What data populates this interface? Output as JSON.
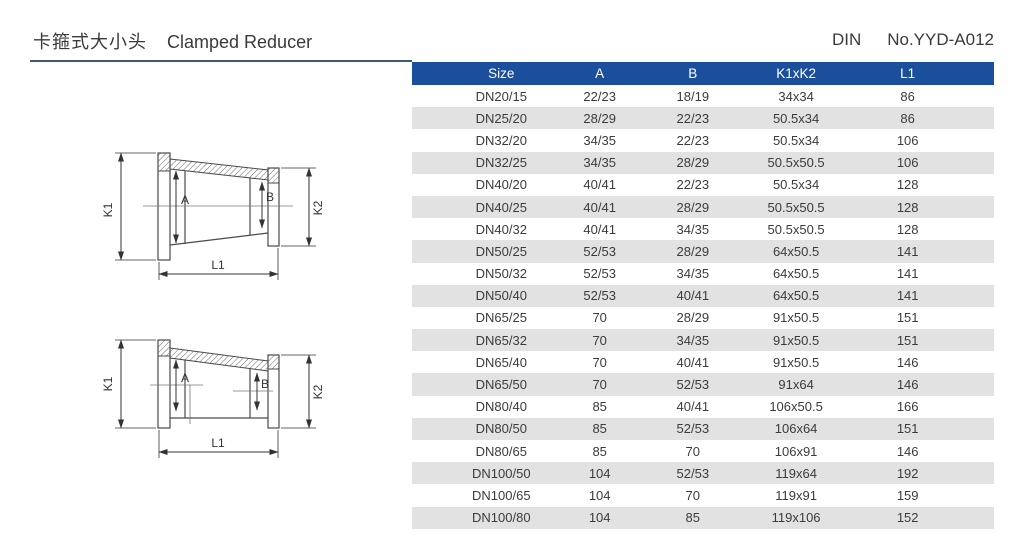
{
  "header": {
    "title_cn": "卡箍式大小头",
    "title_en": "Clamped Reducer",
    "standard": "DIN",
    "model_no": "No.YYD-A012"
  },
  "drawings": {
    "concentric": {
      "labels": {
        "k1": "K1",
        "a": "A",
        "b": "B",
        "k2": "K2",
        "l1": "L1"
      }
    },
    "eccentric": {
      "labels": {
        "k1": "K1",
        "a": "A",
        "b": "B",
        "k2": "K2",
        "l1": "L1"
      }
    }
  },
  "table": {
    "columns": [
      "Size",
      "A",
      "B",
      "K1xK2",
      "L1"
    ],
    "rows": [
      [
        "DN20/15",
        "22/23",
        "18/19",
        "34x34",
        "86"
      ],
      [
        "DN25/20",
        "28/29",
        "22/23",
        "50.5x34",
        "86"
      ],
      [
        "DN32/20",
        "34/35",
        "22/23",
        "50.5x34",
        "106"
      ],
      [
        "DN32/25",
        "34/35",
        "28/29",
        "50.5x50.5",
        "106"
      ],
      [
        "DN40/20",
        "40/41",
        "22/23",
        "50.5x34",
        "128"
      ],
      [
        "DN40/25",
        "40/41",
        "28/29",
        "50.5x50.5",
        "128"
      ],
      [
        "DN40/32",
        "40/41",
        "34/35",
        "50.5x50.5",
        "128"
      ],
      [
        "DN50/25",
        "52/53",
        "28/29",
        "64x50.5",
        "141"
      ],
      [
        "DN50/32",
        "52/53",
        "34/35",
        "64x50.5",
        "141"
      ],
      [
        "DN50/40",
        "52/53",
        "40/41",
        "64x50.5",
        "141"
      ],
      [
        "DN65/25",
        "70",
        "28/29",
        "91x50.5",
        "151"
      ],
      [
        "DN65/32",
        "70",
        "34/35",
        "91x50.5",
        "151"
      ],
      [
        "DN65/40",
        "70",
        "40/41",
        "91x50.5",
        "146"
      ],
      [
        "DN65/50",
        "70",
        "52/53",
        "91x64",
        "146"
      ],
      [
        "DN80/40",
        "85",
        "40/41",
        "106x50.5",
        "166"
      ],
      [
        "DN80/50",
        "85",
        "52/53",
        "106x64",
        "151"
      ],
      [
        "DN80/65",
        "85",
        "70",
        "106x91",
        "146"
      ],
      [
        "DN100/50",
        "104",
        "52/53",
        "119x64",
        "192"
      ],
      [
        "DN100/65",
        "104",
        "70",
        "119x91",
        "159"
      ],
      [
        "DN100/80",
        "104",
        "85",
        "119x106",
        "152"
      ]
    ]
  },
  "colors": {
    "table_header_bg": "#1b4f9c",
    "table_header_text": "#ffffff",
    "row_alt_bg": "#e2e2e2",
    "divider": "#3d5a73",
    "body_text": "#3a3a3a",
    "drawing_line": "#4a4a4a"
  }
}
